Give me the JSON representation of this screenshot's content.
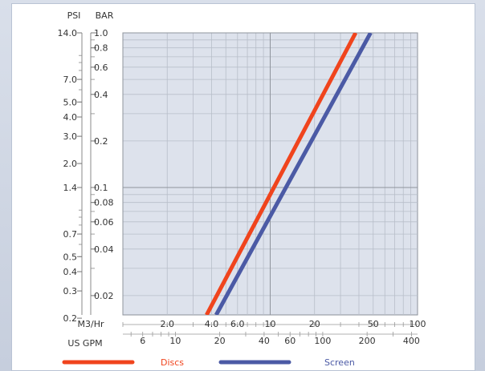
{
  "chart_data": {
    "type": "line",
    "scale": "log-log",
    "title": "",
    "y_axes": {
      "left_title": "PSI",
      "right_title": "BAR",
      "bar_range": [
        0.015,
        1.0
      ],
      "psi_ticks": [
        "14.0",
        "7.0",
        "5.0",
        "4.0",
        "3.0",
        "2.0",
        "1.4",
        "0.7",
        "0.5",
        "0.4",
        "0.3",
        "0.2"
      ],
      "bar_ticks": [
        "1.0",
        "0.8",
        "0.6",
        "0.4",
        "0.2",
        "0.1",
        "0.08",
        "0.06",
        "0.04",
        "0.02"
      ]
    },
    "x_axes": {
      "primary_title": "M3/Hr",
      "secondary_title": "US GPM",
      "m3hr_range": [
        1,
        100
      ],
      "m3hr_ticks": [
        "2.0",
        "4.0",
        "6.0",
        "10",
        "20",
        "50",
        "100"
      ],
      "gpm_ticks": [
        "6",
        "10",
        "20",
        "40",
        "60",
        "100",
        "200",
        "400"
      ]
    },
    "grid": true,
    "legend_position": "bottom",
    "series": [
      {
        "name": "Discs",
        "color": "#f0441d",
        "points": [
          {
            "x": 3.7,
            "y": 0.015
          },
          {
            "x": 38,
            "y": 1.0
          }
        ]
      },
      {
        "name": "Screen",
        "color": "#4b5aa5",
        "points": [
          {
            "x": 4.3,
            "y": 0.015
          },
          {
            "x": 48,
            "y": 1.0
          }
        ]
      }
    ]
  },
  "legend": [
    {
      "label": "Discs",
      "color": "#f0441d"
    },
    {
      "label": "Screen",
      "color": "#4b5aa5"
    }
  ]
}
